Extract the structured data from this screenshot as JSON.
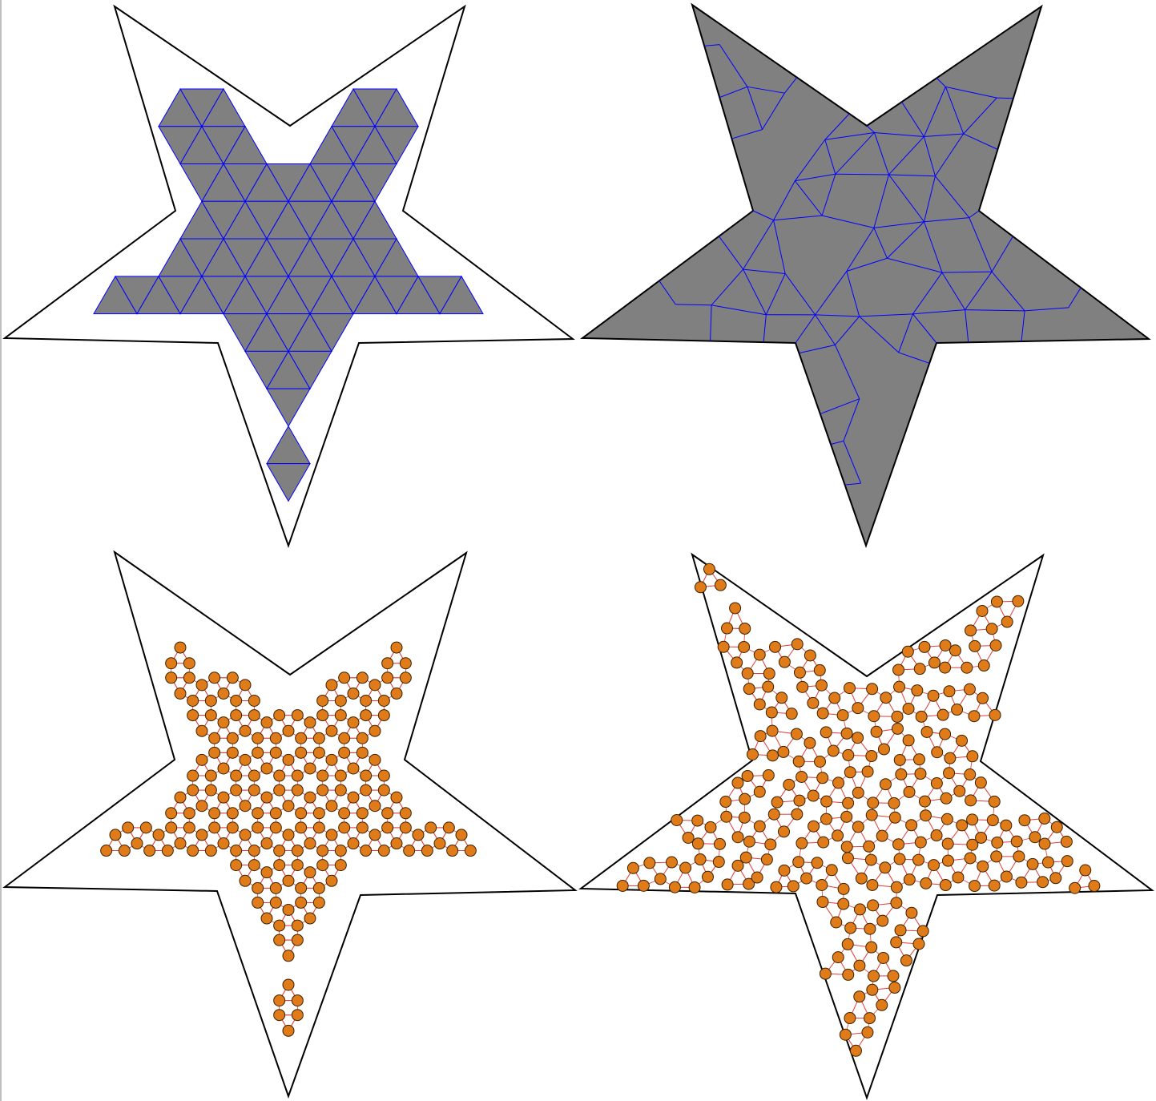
{
  "figure": {
    "panels": [
      {
        "id": "tl",
        "content": "lattice-mesh",
        "fill": "#808080",
        "edge": "#0000ff",
        "outline": "#000000"
      },
      {
        "id": "tr",
        "content": "delaunay-mesh",
        "fill": "#808080",
        "edge": "#0000ff",
        "outline": "#000000"
      },
      {
        "id": "bl",
        "content": "lattice-particles",
        "node": "#e07b1a",
        "edge": "#e53935",
        "outline": "#000000"
      },
      {
        "id": "br",
        "content": "delaunay-particles",
        "node": "#e07b1a",
        "edge": "#e53935",
        "outline": "#000000"
      }
    ]
  },
  "colors": {
    "mesh_fill": "#808080",
    "mesh_edge": "#0000ff",
    "node_fill": "#e07b1a",
    "node_stroke": "#3a2200",
    "particle_edge": "#e53935",
    "outline": "#000000"
  }
}
